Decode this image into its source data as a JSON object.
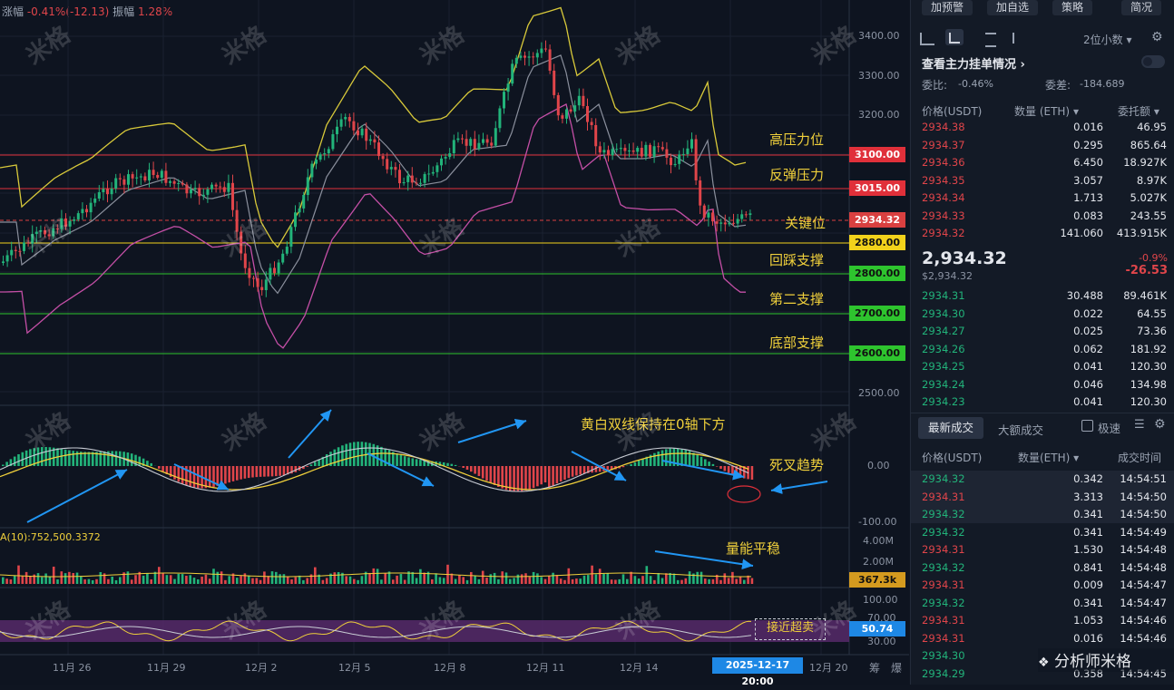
{
  "header_stats": {
    "change_label": "涨幅",
    "change_value": "-0.41%(-12.13)",
    "amplitude_label": "振幅",
    "amplitude_value": "1.28%"
  },
  "price_axis": [
    "3400.00",
    "3300.00",
    "3200.00",
    "2500.00"
  ],
  "price_levels": [
    {
      "value": "3100.00",
      "color": "#e0303a",
      "text_color": "#ffffff"
    },
    {
      "value": "3015.00",
      "color": "#e0303a",
      "text_color": "#ffffff"
    },
    {
      "value": "2934.32",
      "color": "#d94040",
      "text_color": "#ffffff"
    },
    {
      "value": "2880.00",
      "color": "#f2d21b",
      "text_color": "#111111"
    },
    {
      "value": "2800.00",
      "color": "#2ec42e",
      "text_color": "#111111"
    },
    {
      "value": "2700.00",
      "color": "#2ec42e",
      "text_color": "#111111"
    },
    {
      "value": "2600.00",
      "color": "#2ec42e",
      "text_color": "#111111"
    }
  ],
  "annotations": {
    "high_resistance": "高压力位",
    "rebound_pressure": "反弹压力",
    "key_level": "关键位",
    "pullback_support": "回踩支撑",
    "second_support": "第二支撑",
    "bottom_support": "底部支撑",
    "macd_note": "黄白双线保持在0轴下方",
    "death_cross": "死叉趋势",
    "volume_note": "量能平稳",
    "oversold_note": "接近超卖"
  },
  "macd_axis": [
    "0.00",
    "-100.00"
  ],
  "volume_indicator": "A(10):752,500.3372",
  "volume_axis": [
    "4.00M",
    "2.00M"
  ],
  "volume_tag": "367.3k",
  "rsi_axis": [
    "100.00",
    "70.00",
    "30.00"
  ],
  "rsi_tag": "50.74",
  "dates": [
    "11月 26",
    "11月 29",
    "12月 2",
    "12月 5",
    "12月 8",
    "12月 11",
    "12月 14",
    "12月 20"
  ],
  "crosshair_date": "2025-12-17 20:00",
  "corner_labels": [
    "筹",
    "爆"
  ],
  "watermark": "米格",
  "toolbar": {
    "alert": "加预警",
    "watchlist": "加自选",
    "strategy": "策略",
    "simple": "简况"
  },
  "orderbook": {
    "precision": "2位小数",
    "main_orders_link": "查看主力挂单情况",
    "ratio_label": "委比:",
    "ratio_value": "-0.46%",
    "diff_label": "委差:",
    "diff_value": "-184.689",
    "col_price": "价格(USDT)",
    "col_qty": "数量 (ETH)",
    "col_amount": "委托额",
    "asks": [
      {
        "price": "2934.38",
        "qty": "0.016",
        "amount": "46.95"
      },
      {
        "price": "2934.37",
        "qty": "0.295",
        "amount": "865.64"
      },
      {
        "price": "2934.36",
        "qty": "6.450",
        "amount": "18.927K"
      },
      {
        "price": "2934.35",
        "qty": "3.057",
        "amount": "8.97K"
      },
      {
        "price": "2934.34",
        "qty": "1.713",
        "amount": "5.027K"
      },
      {
        "price": "2934.33",
        "qty": "0.083",
        "amount": "243.55"
      },
      {
        "price": "2934.32",
        "qty": "141.060",
        "amount": "413.915K"
      }
    ],
    "last_price": "2,934.32",
    "last_price_usd": "$2,934.32",
    "change_pct": "-0.9%",
    "change_abs": "-26.53",
    "bids": [
      {
        "price": "2934.31",
        "qty": "30.488",
        "amount": "89.461K"
      },
      {
        "price": "2934.30",
        "qty": "0.022",
        "amount": "64.55"
      },
      {
        "price": "2934.27",
        "qty": "0.025",
        "amount": "73.36"
      },
      {
        "price": "2934.26",
        "qty": "0.062",
        "amount": "181.92"
      },
      {
        "price": "2934.25",
        "qty": "0.041",
        "amount": "120.30"
      },
      {
        "price": "2934.24",
        "qty": "0.046",
        "amount": "134.98"
      },
      {
        "price": "2934.23",
        "qty": "0.041",
        "amount": "120.30"
      }
    ]
  },
  "trades": {
    "tab_latest": "最新成交",
    "tab_large": "大额成交",
    "fast_label": "极速",
    "col_price": "价格(USDT)",
    "col_qty": "数量(ETH)",
    "col_time": "成交时间",
    "rows": [
      {
        "price": "2934.32",
        "qty": "0.342",
        "time": "14:54:51",
        "side": "buy"
      },
      {
        "price": "2934.31",
        "qty": "3.313",
        "time": "14:54:50",
        "side": "sell"
      },
      {
        "price": "2934.32",
        "qty": "0.341",
        "time": "14:54:50",
        "side": "buy"
      },
      {
        "price": "2934.32",
        "qty": "0.341",
        "time": "14:54:49",
        "side": "buy"
      },
      {
        "price": "2934.31",
        "qty": "1.530",
        "time": "14:54:48",
        "side": "sell"
      },
      {
        "price": "2934.32",
        "qty": "0.841",
        "time": "14:54:48",
        "side": "buy"
      },
      {
        "price": "2934.31",
        "qty": "0.009",
        "time": "14:54:47",
        "side": "sell"
      },
      {
        "price": "2934.32",
        "qty": "0.341",
        "time": "14:54:47",
        "side": "buy"
      },
      {
        "price": "2934.31",
        "qty": "1.053",
        "time": "14:54:46",
        "side": "sell"
      },
      {
        "price": "2934.31",
        "qty": "0.016",
        "time": "14:54:46",
        "side": "sell"
      },
      {
        "price": "2934.30",
        "qty": "",
        "time": "",
        "side": "buy"
      },
      {
        "price": "2934.29",
        "qty": "0.358",
        "time": "14:54:45",
        "side": "buy"
      }
    ]
  },
  "footer_watermark": "分析师米格"
}
